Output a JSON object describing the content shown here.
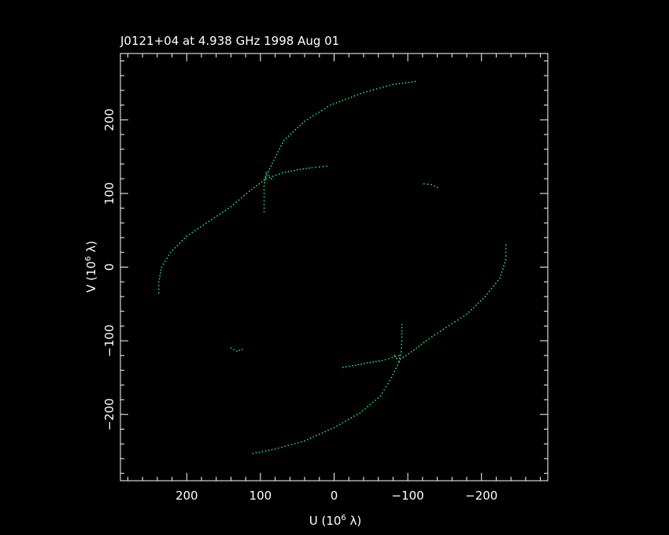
{
  "chart_data": {
    "type": "scatter",
    "title": "J0121+04 at 4.938 GHz 1998 Aug 01",
    "xlabel": {
      "prefix": "U (10",
      "exp": "6",
      "suffix": " λ)"
    },
    "ylabel": {
      "prefix": "V (10",
      "exp": "6",
      "suffix": " λ)"
    },
    "x_reversed": true,
    "xlim": [
      290,
      -290
    ],
    "ylim": [
      -290,
      290
    ],
    "x_ticks": [
      200,
      100,
      0,
      -100,
      -200
    ],
    "x_tick_labels": [
      "200",
      "100",
      "0",
      "−100",
      "−200"
    ],
    "y_ticks": [
      -200,
      -100,
      0,
      100,
      200
    ],
    "y_tick_labels": [
      "−200",
      "−100",
      "0",
      "100",
      "200"
    ],
    "grid": false,
    "colors": {
      "background": "#000000",
      "axes": "#ffffff",
      "points": "#22e08a"
    },
    "tracks": [
      {
        "points": [
          [
            238,
            -35
          ],
          [
            238,
            -20
          ],
          [
            234,
            0
          ],
          [
            222,
            20
          ],
          [
            200,
            42
          ],
          [
            170,
            62
          ],
          [
            140,
            82
          ],
          [
            115,
            103
          ],
          [
            95,
            118
          ],
          [
            82,
            145
          ],
          [
            68,
            172
          ],
          [
            40,
            198
          ],
          [
            5,
            220
          ],
          [
            -40,
            237
          ],
          [
            -80,
            248
          ],
          [
            -110,
            252
          ]
        ]
      },
      {
        "points": [
          [
            95,
            75
          ],
          [
            95,
            90
          ],
          [
            95,
            110
          ],
          [
            92,
            128
          ],
          [
            85,
            120
          ]
        ]
      },
      {
        "points": [
          [
            92,
            120
          ],
          [
            70,
            128
          ],
          [
            50,
            132
          ],
          [
            30,
            135
          ],
          [
            10,
            137
          ]
        ]
      },
      {
        "points": [
          [
            -122,
            113
          ],
          [
            -132,
            112
          ],
          [
            -140,
            108
          ]
        ]
      },
      {
        "points": [
          [
            -233,
            30
          ],
          [
            -233,
            10
          ],
          [
            -225,
            -15
          ],
          [
            -205,
            -40
          ],
          [
            -180,
            -64
          ],
          [
            -152,
            -82
          ],
          [
            -125,
            -100
          ],
          [
            -105,
            -115
          ],
          [
            -90,
            -125
          ],
          [
            -78,
            -150
          ],
          [
            -63,
            -175
          ],
          [
            -35,
            -198
          ],
          [
            0,
            -218
          ],
          [
            40,
            -236
          ],
          [
            80,
            -247
          ],
          [
            110,
            -253
          ]
        ]
      },
      {
        "points": [
          [
            -92,
            -78
          ],
          [
            -92,
            -95
          ],
          [
            -91,
            -115
          ],
          [
            -88,
            -128
          ],
          [
            -82,
            -120
          ]
        ]
      },
      {
        "points": [
          [
            -88,
            -120
          ],
          [
            -65,
            -127
          ],
          [
            -45,
            -130
          ],
          [
            -25,
            -134
          ],
          [
            -12,
            -136
          ]
        ]
      },
      {
        "points": [
          [
            125,
            -112
          ],
          [
            132,
            -114
          ],
          [
            140,
            -110
          ]
        ]
      }
    ]
  }
}
